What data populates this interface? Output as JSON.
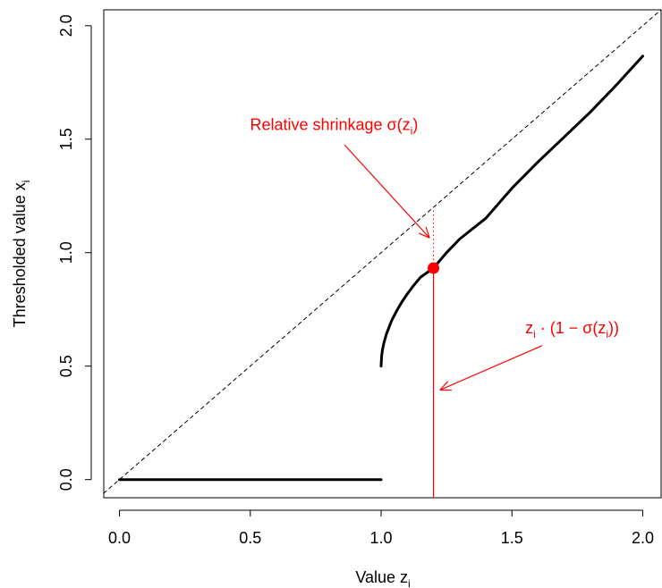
{
  "chart_data": {
    "type": "line",
    "title": "",
    "xlabel": "Value z",
    "xlabel_sub": "i",
    "ylabel": "Thresholded value x",
    "ylabel_sub": "i",
    "xlim": [
      -0.06,
      2.07
    ],
    "ylim": [
      -0.08,
      2.07
    ],
    "xticks": [
      0.0,
      0.5,
      1.0,
      1.5,
      2.0
    ],
    "xtick_labels": [
      "0.0",
      "0.5",
      "1.0",
      "1.5",
      "2.0"
    ],
    "yticks": [
      0.0,
      0.5,
      1.0,
      1.5,
      2.0
    ],
    "ytick_labels": [
      "0.0",
      "0.5",
      "1.0",
      "1.5",
      "2.0"
    ],
    "grid": false,
    "series": [
      {
        "style": "dashed",
        "color": "#000000",
        "x": [
          -0.06,
          2.07
        ],
        "y": [
          -0.06,
          2.07
        ]
      },
      {
        "style": "solid",
        "color": "#000000",
        "x": [
          0.0,
          1.0
        ],
        "y": [
          0.0,
          0.0
        ]
      },
      {
        "style": "solid",
        "color": "#000000",
        "x": [
          1.0,
          1.002,
          1.005,
          1.01,
          1.02,
          1.04,
          1.06,
          1.08,
          1.1,
          1.12,
          1.15,
          1.2,
          1.25,
          1.3,
          1.4,
          1.5,
          1.6,
          1.7,
          1.8,
          1.9,
          2.0
        ],
        "y": [
          0.5,
          0.545,
          0.571,
          0.6,
          0.641,
          0.7,
          0.745,
          0.784,
          0.818,
          0.849,
          0.891,
          0.932,
          1.0,
          1.06,
          1.1515,
          1.284,
          1.4,
          1.51,
          1.62,
          1.74,
          1.866
        ]
      }
    ],
    "highlight_point": {
      "x": 1.2,
      "y": 0.932,
      "color": "#ff0000"
    },
    "shrinkage_line": {
      "x": 1.2,
      "y_from": 0.932,
      "y_to": 1.2,
      "style": "dotted",
      "color": "#ff0000"
    },
    "value_line": {
      "x": 1.2,
      "y_from": -0.08,
      "y_to": 0.932,
      "style": "solid",
      "color": "#ff0000"
    },
    "annotations": [
      {
        "id": "relative-shrinkage",
        "text": "Relative shrinkage σ(z",
        "sub": "i",
        "tail": ")",
        "color": "#ff0000",
        "label_anchor": [
          0.82,
          1.54
        ],
        "arrow_from": [
          0.86,
          1.475
        ],
        "arrow_to": [
          1.185,
          1.065
        ]
      },
      {
        "id": "z-times-one-minus-sigma",
        "text": "z",
        "sub": "i",
        "tail": " · (1 − σ(z",
        "sub2": "i",
        "tail2": "))",
        "color": "#ff0000",
        "label_anchor": [
          1.73,
          0.645
        ],
        "arrow_from": [
          1.615,
          0.59
        ],
        "arrow_to": [
          1.225,
          0.395
        ]
      }
    ]
  }
}
